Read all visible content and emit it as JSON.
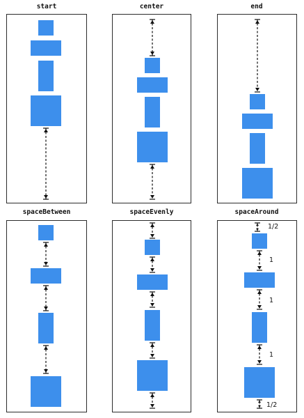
{
  "panels": [
    {
      "title": "start"
    },
    {
      "title": "center"
    },
    {
      "title": "end"
    },
    {
      "title": "spaceBetween"
    },
    {
      "title": "spaceEvenly"
    },
    {
      "title": "spaceAround",
      "labels": [
        "1/2",
        "1",
        "1",
        "1",
        "1/2"
      ]
    }
  ],
  "colors": {
    "box": "#3d8fec",
    "border": "#2b2b2b",
    "arrow": "#111111"
  }
}
